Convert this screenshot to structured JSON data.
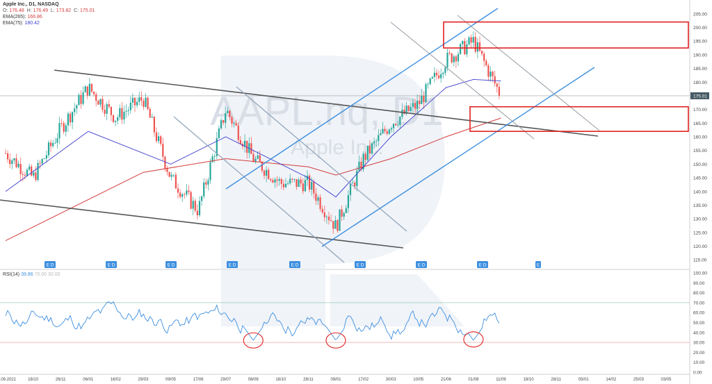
{
  "header": {
    "symbol_line": "Apple Inc., D1, NASDAQ",
    "ohlc": [
      {
        "label": "O:",
        "value": "176.48"
      },
      {
        "label": "H:",
        "value": "176.49"
      },
      {
        "label": "L:",
        "value": "173.82"
      },
      {
        "label": "C:",
        "value": "175.01"
      }
    ],
    "ema265_label": "EMA(265)",
    "ema265_value": "166.86",
    "ema75_label": "EMA(75)",
    "ema75_value": "180.42"
  },
  "watermark": {
    "ticker": "AAPL.nq, D1",
    "name": "Apple Inc."
  },
  "rsi_header": {
    "label": "RSI(14)",
    "value": "39.86",
    "upper": "70.00",
    "lower": "30.00"
  },
  "colors": {
    "candle_up": "#26a69a",
    "candle_down": "#ef5350",
    "ema265": "#d23c3c",
    "ema75": "#3b3bcf",
    "rsi": "#3d8fe0",
    "channel_blue": "#3d8fe0",
    "trend_grey": "#555555",
    "highlight": "#e02020"
  },
  "chart_data": [
    {
      "type": "candlestick",
      "price_axis": {
        "ylim": [
          112,
          207
        ],
        "ticks": [
          "205.00",
          "200.00",
          "195.00",
          "190.00",
          "185.00",
          "180.00",
          "175.00",
          "170.00",
          "165.00",
          "160.00",
          "155.00",
          "150.00",
          "145.00",
          "140.00",
          "135.00",
          "130.00",
          "125.00",
          "120.00",
          "115.00"
        ]
      },
      "last_price_label": "175.01",
      "date_axis_ticks": [
        "08.09.2021",
        "18/10",
        "26/11",
        "06/01",
        "16/02",
        "29/03",
        "09/05",
        "17/06",
        "29/07",
        "08/09",
        "18/10",
        "28/11",
        "09/01",
        "17/02",
        "30/03",
        "10/05",
        "21/06",
        "01/08",
        "11/09",
        "19/10",
        "28/11",
        "05/01",
        "14/02",
        "25/03",
        "03/05"
      ],
      "earnings_markers": [
        "E D",
        "E D",
        "E D",
        "E D",
        "E D",
        "E D",
        "E D",
        "E D",
        "E"
      ],
      "close_path": [
        {
          "x": "08.09.2021",
          "y": 154
        },
        {
          "x": "18/10",
          "y": 145
        },
        {
          "x": "26/11",
          "y": 163
        },
        {
          "x": "06/01",
          "y": 178
        },
        {
          "x": "16/02",
          "y": 167
        },
        {
          "x": "29/03",
          "y": 174
        },
        {
          "x": "09/05",
          "y": 145
        },
        {
          "x": "17/06",
          "y": 133
        },
        {
          "x": "29/07",
          "y": 170
        },
        {
          "x": "08/09",
          "y": 152
        },
        {
          "x": "18/10",
          "y": 143
        },
        {
          "x": "28/11",
          "y": 143
        },
        {
          "x": "09/01",
          "y": 127
        },
        {
          "x": "17/02",
          "y": 152
        },
        {
          "x": "30/03",
          "y": 165
        },
        {
          "x": "10/05",
          "y": 172
        },
        {
          "x": "21/06",
          "y": 188
        },
        {
          "x": "01/08",
          "y": 195
        },
        {
          "x": "11/09",
          "y": 175
        }
      ],
      "ema265_path": [
        {
          "x": "08.09.2021",
          "y": 122
        },
        {
          "x": "29/03",
          "y": 147
        },
        {
          "x": "29/07",
          "y": 152
        },
        {
          "x": "28/11",
          "y": 149
        },
        {
          "x": "09/01",
          "y": 146
        },
        {
          "x": "30/03",
          "y": 152
        },
        {
          "x": "21/06",
          "y": 160
        },
        {
          "x": "11/09",
          "y": 166.86
        }
      ],
      "ema75_path": [
        {
          "x": "08.09.2021",
          "y": 140
        },
        {
          "x": "06/01",
          "y": 162
        },
        {
          "x": "09/05",
          "y": 150
        },
        {
          "x": "29/07",
          "y": 160
        },
        {
          "x": "28/11",
          "y": 145
        },
        {
          "x": "09/01",
          "y": 138
        },
        {
          "x": "30/03",
          "y": 160
        },
        {
          "x": "21/06",
          "y": 178
        },
        {
          "x": "01/08",
          "y": 181
        },
        {
          "x": "11/09",
          "y": 180.42
        }
      ],
      "highlight_boxes": [
        {
          "y_range": [
            192.5,
            202
          ]
        },
        {
          "y_range": [
            162,
            171
          ]
        }
      ]
    },
    {
      "type": "line",
      "title": "RSI(14)",
      "ylim": [
        0,
        100
      ],
      "ticks": [
        "100.00",
        "90.00",
        "80.00",
        "70.00",
        "60.00",
        "50.00",
        "40.00",
        "30.00",
        "20.00",
        "10.00",
        "0.00"
      ],
      "levels": [
        70,
        30
      ],
      "circled_lows": [
        {
          "x": "08/09",
          "y": 32
        },
        {
          "x": "09/01",
          "y": 32
        },
        {
          "x": "01/08",
          "y": 33
        }
      ]
    }
  ]
}
